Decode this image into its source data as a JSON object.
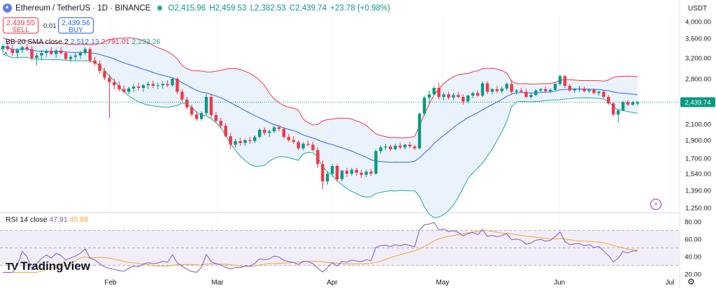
{
  "header": {
    "symbol": "Ethereum / TetherUS · 1D · BINANCE",
    "open": "O2,415.96",
    "high": "H2,459.53",
    "low": "L2,382.53",
    "close": "C2,439.74",
    "change": "+23.78 (+0.98%)"
  },
  "trade": {
    "sell_price": "2,439.55",
    "sell_label": "SELL",
    "spread": "0.01",
    "buy_price": "2,439.56",
    "buy_label": "BUY"
  },
  "indicators": {
    "bb_label": "BB 20 SMA close 2",
    "bb_basis": "2,512.13",
    "bb_upper": "2,791.01",
    "bb_lower": "2,233.26",
    "rsi_label": "RSI 14 close",
    "rsi_value": "47.91",
    "rsi_ma": "45.88"
  },
  "axis": {
    "currency": "USDT",
    "price_ticks": [
      "4,000.00",
      "3,600.00",
      "3,200.00",
      "2,800.00",
      "2,100.00",
      "1,900.00",
      "1,700.00",
      "1,540.00",
      "1,390.00",
      "1,250.00"
    ],
    "price_tick_values": [
      4000,
      3600,
      3200,
      2800,
      2100,
      1900,
      1700,
      1540,
      1390,
      1250
    ],
    "current_price": "2,439.74",
    "current_price_value": 2439.74,
    "rsi_ticks": [
      "80.00",
      "60.00",
      "40.00",
      "20.00"
    ],
    "rsi_tick_values": [
      80,
      60,
      40,
      20
    ],
    "months": [
      "Feb",
      "Mar",
      "Apr",
      "May",
      "Jun",
      "Jul"
    ]
  },
  "branding": {
    "logo": "TradingView",
    "logo_mark": "TV"
  },
  "colors": {
    "up": "#089981",
    "down": "#f23645",
    "basis": "#2962ff",
    "upper": "#f23645",
    "lower": "#22ab94",
    "fill": "#e6f0fb",
    "rsi": "#7e57c2",
    "rsi_ma": "#f5a623",
    "rsi_band": "#ede7f6"
  },
  "chart_data": {
    "type": "candlestick",
    "title": "Ethereum / TetherUS · 1D · BINANCE",
    "ylabel": "USDT",
    "ylim": [
      1250,
      4150
    ],
    "x_categories": [
      "Jan",
      "Feb",
      "Mar",
      "Apr",
      "May",
      "Jun",
      "Jul"
    ],
    "candles": [
      [
        3380,
        3480,
        3300,
        3440
      ],
      [
        3440,
        3520,
        3350,
        3380
      ],
      [
        3380,
        3460,
        3250,
        3300
      ],
      [
        3300,
        3400,
        3200,
        3360
      ],
      [
        3360,
        3450,
        3300,
        3420
      ],
      [
        3420,
        3480,
        3340,
        3380
      ],
      [
        3380,
        3450,
        3150,
        3200
      ],
      [
        3200,
        3300,
        3060,
        3250
      ],
      [
        3250,
        3360,
        3150,
        3300
      ],
      [
        3300,
        3380,
        3220,
        3340
      ],
      [
        3340,
        3420,
        3260,
        3280
      ],
      [
        3280,
        3390,
        3200,
        3350
      ],
      [
        3350,
        3420,
        3270,
        3300
      ],
      [
        3300,
        3340,
        3150,
        3180
      ],
      [
        3180,
        3260,
        3120,
        3220
      ],
      [
        3220,
        3300,
        3150,
        3250
      ],
      [
        3250,
        3340,
        3180,
        3300
      ],
      [
        3300,
        3420,
        3260,
        3380
      ],
      [
        3380,
        3420,
        3100,
        3150
      ],
      [
        3150,
        3220,
        3050,
        3090
      ],
      [
        3090,
        3150,
        2900,
        2950
      ],
      [
        2950,
        3010,
        2780,
        2820
      ],
      [
        2820,
        2880,
        2190,
        2750
      ],
      [
        2750,
        2800,
        2640,
        2700
      ],
      [
        2700,
        2760,
        2600,
        2640
      ],
      [
        2640,
        2700,
        2580,
        2600
      ],
      [
        2600,
        2680,
        2560,
        2650
      ],
      [
        2650,
        2720,
        2600,
        2680
      ],
      [
        2680,
        2740,
        2620,
        2660
      ],
      [
        2660,
        2720,
        2600,
        2700
      ],
      [
        2700,
        2760,
        2640,
        2720
      ],
      [
        2720,
        2770,
        2660,
        2690
      ],
      [
        2690,
        2740,
        2640,
        2700
      ],
      [
        2700,
        2760,
        2650,
        2720
      ],
      [
        2720,
        2780,
        2670,
        2700
      ],
      [
        2700,
        2820,
        2680,
        2800
      ],
      [
        2800,
        2830,
        2560,
        2600
      ],
      [
        2600,
        2640,
        2450,
        2480
      ],
      [
        2480,
        2520,
        2330,
        2360
      ],
      [
        2360,
        2400,
        2220,
        2250
      ],
      [
        2250,
        2300,
        2150,
        2180
      ],
      [
        2180,
        2300,
        2150,
        2270
      ],
      [
        2270,
        2560,
        2240,
        2520
      ],
      [
        2520,
        2560,
        2200,
        2240
      ],
      [
        2240,
        2290,
        2120,
        2150
      ],
      [
        2150,
        2200,
        2050,
        2080
      ],
      [
        2080,
        2120,
        1930,
        1950
      ],
      [
        1950,
        1990,
        1800,
        1850
      ],
      [
        1850,
        1920,
        1820,
        1890
      ],
      [
        1890,
        1930,
        1840,
        1870
      ],
      [
        1870,
        1920,
        1840,
        1900
      ],
      [
        1900,
        1940,
        1860,
        1890
      ],
      [
        1890,
        1960,
        1870,
        1940
      ],
      [
        1940,
        2050,
        1920,
        2030
      ],
      [
        2030,
        2060,
        1960,
        1990
      ],
      [
        1990,
        2030,
        1940,
        2010
      ],
      [
        2010,
        2080,
        1990,
        2060
      ],
      [
        2060,
        2090,
        2010,
        2040
      ],
      [
        2040,
        2060,
        1920,
        1940
      ],
      [
        1940,
        1980,
        1880,
        1900
      ],
      [
        1900,
        1950,
        1860,
        1880
      ],
      [
        1880,
        1900,
        1790,
        1810
      ],
      [
        1810,
        1880,
        1790,
        1860
      ],
      [
        1860,
        1900,
        1830,
        1850
      ],
      [
        1850,
        1880,
        1780,
        1790
      ],
      [
        1790,
        1820,
        1600,
        1640
      ],
      [
        1640,
        1680,
        1400,
        1470
      ],
      [
        1470,
        1560,
        1440,
        1540
      ],
      [
        1540,
        1640,
        1510,
        1620
      ],
      [
        1620,
        1640,
        1470,
        1490
      ],
      [
        1490,
        1580,
        1470,
        1570
      ],
      [
        1570,
        1600,
        1510,
        1540
      ],
      [
        1540,
        1600,
        1520,
        1580
      ],
      [
        1580,
        1600,
        1520,
        1550
      ],
      [
        1550,
        1580,
        1500,
        1530
      ],
      [
        1530,
        1580,
        1510,
        1560
      ],
      [
        1560,
        1590,
        1520,
        1540
      ],
      [
        1540,
        1800,
        1530,
        1780
      ],
      [
        1780,
        1840,
        1750,
        1820
      ],
      [
        1820,
        1860,
        1790,
        1830
      ],
      [
        1830,
        1850,
        1780,
        1800
      ],
      [
        1800,
        1860,
        1790,
        1840
      ],
      [
        1840,
        1870,
        1800,
        1820
      ],
      [
        1820,
        1860,
        1800,
        1850
      ],
      [
        1850,
        1880,
        1810,
        1830
      ],
      [
        1830,
        1850,
        1790,
        1810
      ],
      [
        1810,
        2280,
        1800,
        2260
      ],
      [
        2260,
        2540,
        2230,
        2510
      ],
      [
        2510,
        2620,
        2420,
        2560
      ],
      [
        2560,
        2690,
        2540,
        2660
      ],
      [
        2660,
        2740,
        2480,
        2520
      ],
      [
        2520,
        2590,
        2470,
        2560
      ],
      [
        2560,
        2600,
        2480,
        2510
      ],
      [
        2510,
        2580,
        2470,
        2550
      ],
      [
        2550,
        2600,
        2500,
        2520
      ],
      [
        2520,
        2560,
        2400,
        2450
      ],
      [
        2450,
        2560,
        2420,
        2540
      ],
      [
        2540,
        2600,
        2500,
        2580
      ],
      [
        2580,
        2620,
        2520,
        2540
      ],
      [
        2540,
        2760,
        2520,
        2730
      ],
      [
        2730,
        2760,
        2560,
        2600
      ],
      [
        2600,
        2660,
        2560,
        2640
      ],
      [
        2640,
        2690,
        2580,
        2610
      ],
      [
        2610,
        2680,
        2570,
        2650
      ],
      [
        2650,
        2740,
        2620,
        2720
      ],
      [
        2720,
        2780,
        2560,
        2600
      ],
      [
        2600,
        2640,
        2560,
        2620
      ],
      [
        2620,
        2660,
        2580,
        2600
      ],
      [
        2600,
        2650,
        2500,
        2520
      ],
      [
        2520,
        2580,
        2490,
        2550
      ],
      [
        2550,
        2640,
        2530,
        2620
      ],
      [
        2620,
        2660,
        2590,
        2640
      ],
      [
        2640,
        2680,
        2600,
        2610
      ],
      [
        2610,
        2650,
        2580,
        2630
      ],
      [
        2630,
        2750,
        2620,
        2720
      ],
      [
        2720,
        2880,
        2690,
        2850
      ],
      [
        2850,
        2870,
        2660,
        2690
      ],
      [
        2690,
        2720,
        2600,
        2620
      ],
      [
        2620,
        2660,
        2580,
        2640
      ],
      [
        2640,
        2690,
        2600,
        2650
      ],
      [
        2650,
        2680,
        2590,
        2610
      ],
      [
        2610,
        2650,
        2580,
        2630
      ],
      [
        2630,
        2650,
        2560,
        2580
      ],
      [
        2580,
        2620,
        2540,
        2600
      ],
      [
        2600,
        2620,
        2500,
        2520
      ],
      [
        2520,
        2550,
        2400,
        2420
      ],
      [
        2420,
        2440,
        2220,
        2250
      ],
      [
        2250,
        2330,
        2120,
        2310
      ],
      [
        2310,
        2460,
        2300,
        2440
      ],
      [
        2440,
        2470,
        2380,
        2400
      ],
      [
        2400,
        2460,
        2390,
        2440
      ],
      [
        2415.96,
        2459.53,
        2382.53,
        2439.74
      ]
    ],
    "bollinger": {
      "period": 20,
      "stddev": 2,
      "basis": 2512.13,
      "upper": 2791.01,
      "lower": 2233.26
    },
    "rsi": {
      "period": 14,
      "value": 47.91,
      "ma": 45.88,
      "ylim": [
        20,
        90
      ],
      "levels": [
        70,
        50,
        30
      ]
    }
  }
}
